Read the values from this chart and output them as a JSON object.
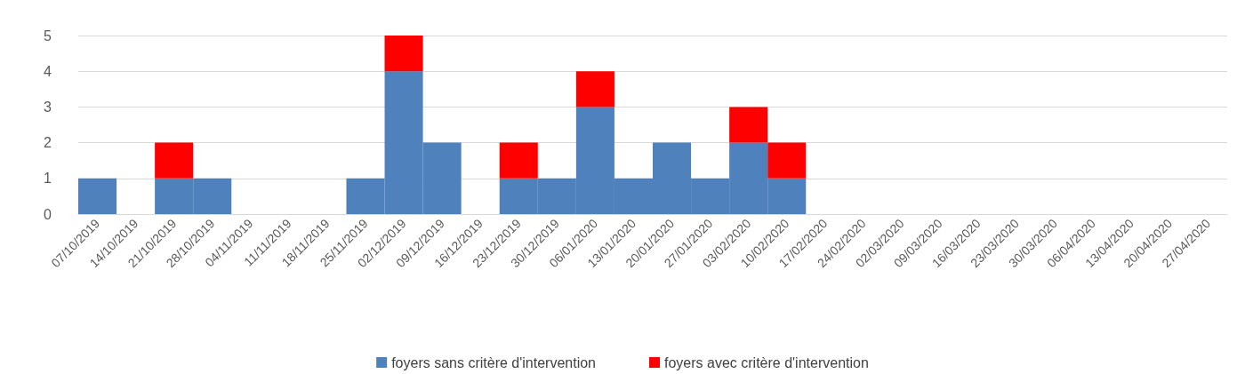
{
  "chart_data": {
    "type": "bar",
    "stacked": true,
    "categories": [
      "07/10/2019",
      "14/10/2019",
      "21/10/2019",
      "28/10/2019",
      "04/11/2019",
      "11/11/2019",
      "18/11/2019",
      "25/11/2019",
      "02/12/2019",
      "09/12/2019",
      "16/12/2019",
      "23/12/2019",
      "30/12/2019",
      "06/01/2020",
      "13/01/2020",
      "20/01/2020",
      "27/01/2020",
      "03/02/2020",
      "10/02/2020",
      "17/02/2020",
      "24/02/2020",
      "02/03/2020",
      "09/03/2020",
      "16/03/2020",
      "23/03/2020",
      "30/03/2020",
      "06/04/2020",
      "13/04/2020",
      "20/04/2020",
      "27/04/2020"
    ],
    "series": [
      {
        "name": "foyers sans critère d'intervention",
        "color": "#4f81bd",
        "values": [
          1,
          0,
          1,
          1,
          0,
          0,
          0,
          1,
          4,
          2,
          0,
          1,
          1,
          3,
          1,
          2,
          1,
          2,
          1,
          0,
          0,
          0,
          0,
          0,
          0,
          0,
          0,
          0,
          0,
          0
        ]
      },
      {
        "name": "foyers avec critère d'intervention",
        "color": "#ff0000",
        "values": [
          0,
          0,
          1,
          0,
          0,
          0,
          0,
          0,
          1,
          0,
          0,
          1,
          0,
          1,
          0,
          0,
          0,
          1,
          1,
          0,
          0,
          0,
          0,
          0,
          0,
          0,
          0,
          0,
          0,
          0
        ]
      }
    ],
    "ylim": [
      0,
      5
    ],
    "yticks": [
      0,
      1,
      2,
      3,
      4,
      5
    ],
    "grid": "y",
    "legend": "bottom"
  }
}
